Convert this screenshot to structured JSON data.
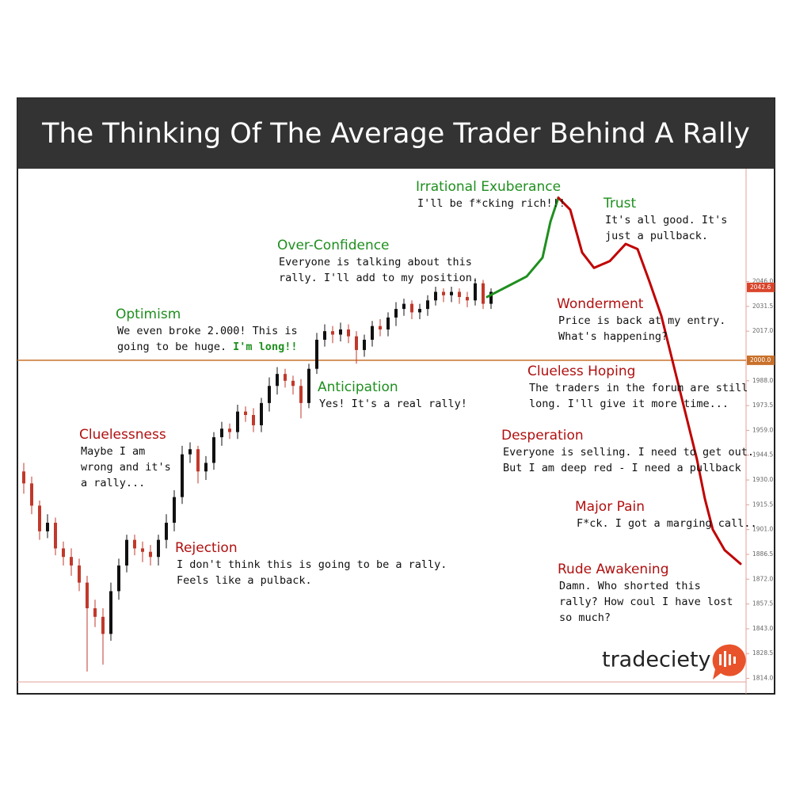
{
  "chart_data": {
    "type": "candlestick",
    "title": "The Thinking Of The Average Trader Behind A Rally",
    "xlim": [
      -0.8,
      91.2
    ],
    "ylim": [
      1805,
      2112
    ],
    "yticks": [
      {
        "value": 2046,
        "label": "2046.0"
      },
      {
        "value": 2031.5,
        "label": "2031.5"
      },
      {
        "value": 2017,
        "label": "2017.0"
      },
      {
        "value": 1988,
        "label": "1988.0"
      },
      {
        "value": 1973.5,
        "label": "1973.5"
      },
      {
        "value": 1959,
        "label": "1959.0"
      },
      {
        "value": 1944.5,
        "label": "1944.5"
      },
      {
        "value": 1930,
        "label": "1930.0"
      },
      {
        "value": 1915.5,
        "label": "1915.5"
      },
      {
        "value": 1901,
        "label": "1901.0"
      },
      {
        "value": 1886.5,
        "label": "1886.5"
      },
      {
        "value": 1872,
        "label": "1872.0"
      },
      {
        "value": 1857.5,
        "label": "1857.5"
      },
      {
        "value": 1843,
        "label": "1843.0"
      },
      {
        "value": 1828.5,
        "label": "1828.5"
      },
      {
        "value": 1814,
        "label": "1814.0"
      }
    ],
    "reference_line": {
      "value": 2000,
      "label": "2000.0",
      "color": "#c8702a"
    },
    "last_price": {
      "value": 2042.6,
      "label": "2042.6",
      "color": "#d9452b"
    },
    "candles": {
      "up_color": "#111111",
      "down_color": "#c0392b",
      "x": [
        0,
        1,
        2,
        3,
        4,
        5,
        6,
        7,
        8,
        9,
        10,
        11,
        12,
        13,
        14,
        15,
        16,
        17,
        18,
        19,
        20,
        21,
        22,
        23,
        24,
        25,
        26,
        27,
        28,
        29,
        30,
        31,
        32,
        33,
        34,
        35,
        36,
        37,
        38,
        39,
        40,
        41,
        42,
        43,
        44,
        45,
        46,
        47,
        48,
        49,
        50,
        51,
        52,
        53,
        54,
        55,
        56,
        57,
        58,
        59
      ],
      "open": [
        1935,
        1928,
        1915,
        1900,
        1905,
        1890,
        1885,
        1880,
        1870,
        1855,
        1850,
        1840,
        1865,
        1880,
        1895,
        1890,
        1888,
        1885,
        1895,
        1905,
        1920,
        1945,
        1948,
        1935,
        1940,
        1955,
        1960,
        1958,
        1970,
        1968,
        1962,
        1975,
        1985,
        1992,
        1988,
        1985,
        1975,
        1995,
        2012,
        2017,
        2015,
        2018,
        2014,
        2006,
        2012,
        2020,
        2018,
        2025,
        2030,
        2033,
        2028,
        2030,
        2035,
        2040,
        2038,
        2040,
        2037,
        2035,
        2045,
        2033
      ],
      "high": [
        1940,
        1932,
        1918,
        1910,
        1908,
        1894,
        1890,
        1884,
        1874,
        1860,
        1855,
        1870,
        1884,
        1898,
        1898,
        1894,
        1892,
        1898,
        1910,
        1924,
        1950,
        1952,
        1950,
        1944,
        1958,
        1964,
        1963,
        1974,
        1973,
        1972,
        1978,
        1990,
        1996,
        1995,
        1991,
        1989,
        1998,
        2016,
        2021,
        2020,
        2022,
        2021,
        2017,
        2015,
        2023,
        2024,
        2028,
        2034,
        2036,
        2035,
        2033,
        2038,
        2043,
        2042,
        2043,
        2042,
        2040,
        2048,
        2047,
        2042
      ],
      "low": [
        1922,
        1910,
        1895,
        1896,
        1886,
        1880,
        1874,
        1865,
        1818,
        1844,
        1822,
        1836,
        1860,
        1876,
        1886,
        1882,
        1880,
        1880,
        1890,
        1900,
        1916,
        1940,
        1928,
        1930,
        1936,
        1950,
        1954,
        1954,
        1964,
        1958,
        1958,
        1970,
        1980,
        1984,
        1980,
        1966,
        1972,
        1992,
        2008,
        2010,
        2011,
        2010,
        1998,
        2002,
        2008,
        2014,
        2014,
        2020,
        2026,
        2024,
        2024,
        2026,
        2032,
        2034,
        2034,
        2033,
        2031,
        2032,
        2030,
        2030
      ],
      "close": [
        1928,
        1915,
        1900,
        1905,
        1890,
        1885,
        1880,
        1870,
        1855,
        1850,
        1840,
        1865,
        1880,
        1895,
        1890,
        1888,
        1885,
        1895,
        1905,
        1920,
        1945,
        1948,
        1935,
        1940,
        1955,
        1960,
        1958,
        1970,
        1968,
        1962,
        1975,
        1985,
        1992,
        1988,
        1985,
        1975,
        1995,
        2012,
        2017,
        2015,
        2018,
        2014,
        2006,
        2012,
        2020,
        2018,
        2025,
        2030,
        2033,
        2028,
        2030,
        2035,
        2040,
        2038,
        2040,
        2037,
        2035,
        2045,
        2033,
        2040
      ]
    },
    "series": [
      {
        "color": "#1f8f1f",
        "x": [
          58.5,
          61,
          63.5,
          65.5,
          66.5,
          67.5
        ],
        "values": [
          2037,
          2043,
          2049,
          2060,
          2081,
          2095
        ]
      },
      {
        "color": "#c00000",
        "x": [
          67.5,
          69,
          70.5,
          72,
          74,
          76,
          77.5,
          79,
          80.5,
          82,
          83.5,
          85,
          86,
          87,
          88.5,
          90.5
        ],
        "values": [
          2095,
          2088,
          2063,
          2054,
          2058,
          2068,
          2065,
          2046,
          2026,
          1998,
          1970,
          1942,
          1919,
          1901,
          1889,
          1881
        ]
      }
    ],
    "annotations": [
      {
        "title": "Irrational Exuberance",
        "color": "#1f8f1f",
        "lines": [
          "I'll be f*cking rich!!!"
        ]
      },
      {
        "title": "Trust",
        "color": "#1f8f1f",
        "lines": [
          "It's all good. It's",
          "just a pullback."
        ]
      },
      {
        "title": "Over-Confidence",
        "color": "#1f8f1f",
        "lines": [
          "Everyone is talking about this",
          "rally. I'll add to my position."
        ]
      },
      {
        "title": "Wonderment",
        "color": "#b01010",
        "lines": [
          "Price is back at my entry.",
          "What's happening?"
        ]
      },
      {
        "title": "Optimism",
        "color": "#1f8f1f",
        "lines": [
          "We even broke 2.000! This is",
          "going to be huge."
        ],
        "emphasis": "I'm long!!"
      },
      {
        "title": "Clueless Hoping",
        "color": "#b01010",
        "lines": [
          "The traders in the forum are still",
          "long. I'll give it more time..."
        ]
      },
      {
        "title": "Anticipation",
        "color": "#1f8f1f",
        "lines": [
          "Yes! It's a real rally!"
        ]
      },
      {
        "title": "Desperation",
        "color": "#b01010",
        "lines": [
          "Everyone is selling. I need to get out.",
          "But I am deep red - I need a pullback"
        ]
      },
      {
        "title": "Cluelessness",
        "color": "#b01010",
        "lines": [
          "Maybe I am",
          "wrong and it's",
          "a rally..."
        ]
      },
      {
        "title": "Major Pain",
        "color": "#b01010",
        "lines": [
          "F*ck. I got a marging call.."
        ]
      },
      {
        "title": "Rejection",
        "color": "#b01010",
        "lines": [
          "I don't think this is going to be a rally.",
          "Feels like a pulback."
        ]
      },
      {
        "title": "Rude Awakening",
        "color": "#b01010",
        "lines": [
          "Damn. Who shorted this",
          "rally? How coul I have lost",
          "so much?"
        ]
      }
    ]
  },
  "logo": "tradeciety"
}
